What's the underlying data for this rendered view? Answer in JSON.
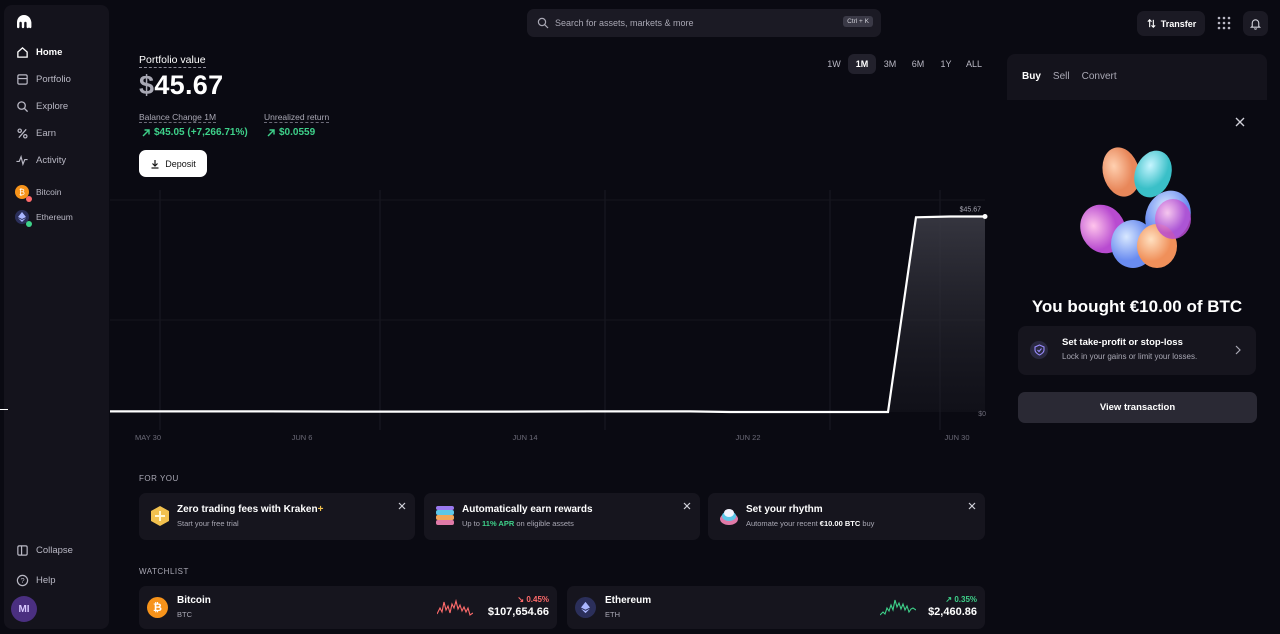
{
  "sidebar": {
    "items": [
      {
        "label": "Home",
        "icon": "home-icon"
      },
      {
        "label": "Portfolio",
        "icon": "portfolio-icon"
      },
      {
        "label": "Explore",
        "icon": "search-icon"
      },
      {
        "label": "Earn",
        "icon": "percent-icon"
      },
      {
        "label": "Activity",
        "icon": "activity-icon"
      }
    ],
    "assets": [
      {
        "label": "Bitcoin",
        "icon": "bitcoin-icon"
      },
      {
        "label": "Ethereum",
        "icon": "ethereum-icon"
      }
    ],
    "collapse": "Collapse",
    "help": "Help",
    "avatar": "MI"
  },
  "search": {
    "placeholder": "Search for assets, markets & more",
    "shortcut": "Ctrl + K"
  },
  "topbar": {
    "transfer": "Transfer"
  },
  "portfolio": {
    "label": "Portfolio value",
    "currency": "$",
    "value": "45.67",
    "balance_label": "Balance Change 1M",
    "balance_value": "$45.05 (+7,266.71%)",
    "unrealized_label": "Unrealized return",
    "unrealized_value": "$0.0559",
    "deposit": "Deposit"
  },
  "ranges": [
    "1W",
    "1M",
    "3M",
    "6M",
    "1Y",
    "ALL"
  ],
  "active_range": "1M",
  "chart_data": {
    "type": "area",
    "x_ticks": [
      "MAY 30",
      "JUN 6",
      "JUN 14",
      "JUN 22",
      "JUN 30"
    ],
    "y_tick": "$0",
    "end_marker": "$45.67",
    "series": [
      {
        "values": [
          0.15,
          0.15,
          0.15,
          0.1,
          0.1,
          0.1,
          0.15,
          0.15,
          0.15,
          0.0,
          0.0,
          0.0,
          0.0,
          45.5,
          45.67,
          45.67
        ]
      }
    ],
    "ylim": [
      0,
      50
    ]
  },
  "for_you": {
    "title": "FOR YOU",
    "cards": [
      {
        "title": "Zero trading fees with Kraken",
        "plus": "+",
        "sub": "Start your free trial"
      },
      {
        "title": "Automatically earn rewards",
        "sub_pre": "Up to ",
        "sub_hl": "11% APR",
        "sub_post": " on eligible assets"
      },
      {
        "title": "Set your rhythm",
        "sub_pre": "Automate your recent ",
        "sub_hl": "€10.00 BTC",
        "sub_post": " buy"
      }
    ]
  },
  "watchlist": {
    "title": "WATCHLIST",
    "items": [
      {
        "name": "Bitcoin",
        "ticker": "BTC",
        "change": "↘ 0.45%",
        "price": "$107,654.66",
        "color": "#f7931a"
      },
      {
        "name": "Ethereum",
        "ticker": "ETH",
        "change": "↗ 0.35%",
        "price": "$2,460.86",
        "color": "#627eea"
      }
    ]
  },
  "trade_panel": {
    "tabs": [
      "Buy",
      "Sell",
      "Convert"
    ],
    "bought_title": "You bought €10.00 of BTC",
    "tp_title": "Set take-profit or stop-loss",
    "tp_sub": "Lock in your gains or limit your losses.",
    "view_button": "View transaction"
  },
  "colors": {
    "accent_green": "#3ed18a",
    "accent_red": "#ff6b6b",
    "bg": "#0a0a12",
    "panel": "#16151e"
  }
}
